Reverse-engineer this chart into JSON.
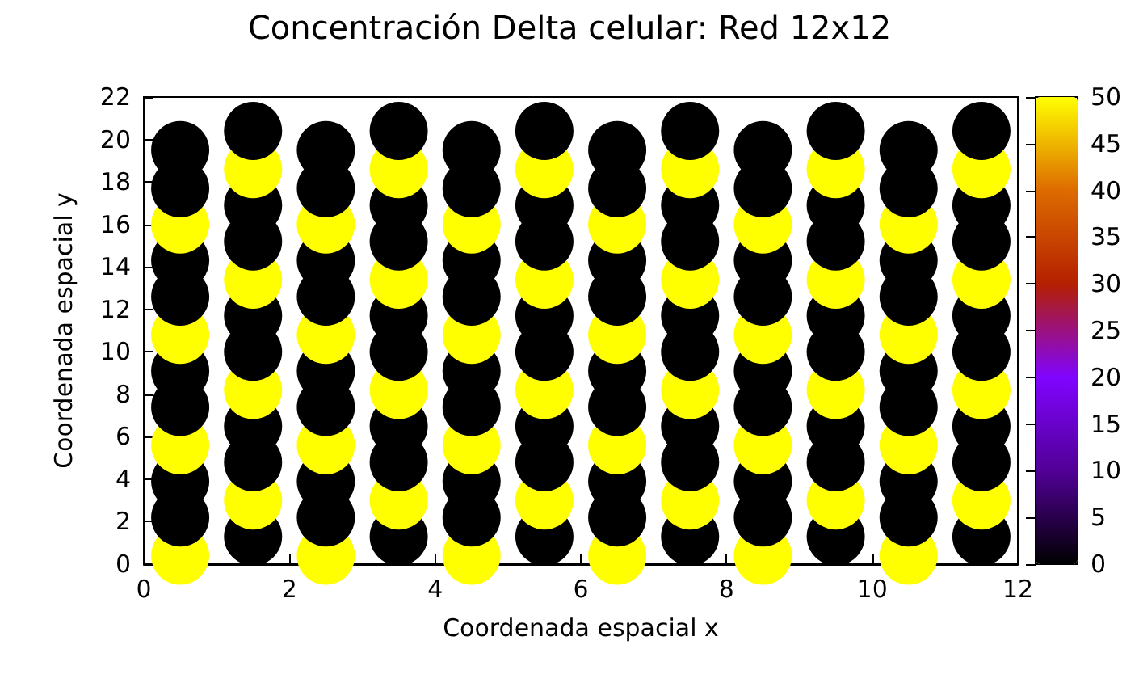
{
  "chart_data": {
    "type": "scatter",
    "title": "Concentración Delta celular: Red 12x12",
    "xlabel": "Coordenada espacial x",
    "ylabel": "Coordenada espacial y",
    "xlim": [
      0,
      12
    ],
    "xticks": [
      0,
      2,
      4,
      6,
      8,
      10,
      12
    ],
    "ylim": [
      0,
      22
    ],
    "yticks": [
      0,
      2,
      4,
      6,
      8,
      10,
      12,
      14,
      16,
      18,
      20,
      22
    ],
    "clim": [
      0,
      50
    ],
    "cticks": [
      0,
      5,
      10,
      15,
      20,
      25,
      30,
      35,
      40,
      45,
      50
    ],
    "grid": false,
    "marker": "circle",
    "x": [
      0.5,
      0.5,
      0.5,
      0.5,
      0.5,
      0.5,
      0.5,
      0.5,
      0.5,
      0.5,
      0.5,
      0.5,
      1.5,
      1.5,
      1.5,
      1.5,
      1.5,
      1.5,
      1.5,
      1.5,
      1.5,
      1.5,
      1.5,
      1.5,
      2.5,
      2.5,
      2.5,
      2.5,
      2.5,
      2.5,
      2.5,
      2.5,
      2.5,
      2.5,
      2.5,
      2.5,
      3.5,
      3.5,
      3.5,
      3.5,
      3.5,
      3.5,
      3.5,
      3.5,
      3.5,
      3.5,
      3.5,
      3.5,
      4.5,
      4.5,
      4.5,
      4.5,
      4.5,
      4.5,
      4.5,
      4.5,
      4.5,
      4.5,
      4.5,
      4.5,
      5.5,
      5.5,
      5.5,
      5.5,
      5.5,
      5.5,
      5.5,
      5.5,
      5.5,
      5.5,
      5.5,
      5.5,
      6.5,
      6.5,
      6.5,
      6.5,
      6.5,
      6.5,
      6.5,
      6.5,
      6.5,
      6.5,
      6.5,
      6.5,
      7.5,
      7.5,
      7.5,
      7.5,
      7.5,
      7.5,
      7.5,
      7.5,
      7.5,
      7.5,
      7.5,
      7.5,
      8.5,
      8.5,
      8.5,
      8.5,
      8.5,
      8.5,
      8.5,
      8.5,
      8.5,
      8.5,
      8.5,
      8.5,
      9.5,
      9.5,
      9.5,
      9.5,
      9.5,
      9.5,
      9.5,
      9.5,
      9.5,
      9.5,
      9.5,
      9.5,
      10.5,
      10.5,
      10.5,
      10.5,
      10.5,
      10.5,
      10.5,
      10.5,
      10.5,
      10.5,
      10.5,
      10.5,
      11.5,
      11.5,
      11.5,
      11.5,
      11.5,
      11.5,
      11.5,
      11.5,
      11.5,
      11.5,
      11.5,
      11.5
    ],
    "values": [
      0.4,
      2.2,
      3.9,
      5.6,
      7.4,
      9.1,
      10.8,
      12.6,
      14.3,
      16.0,
      17.7,
      19.5,
      1.3,
      3.0,
      4.8,
      6.5,
      8.2,
      10.0,
      11.7,
      13.4,
      15.2,
      16.9,
      18.6,
      20.4,
      0.4,
      2.2,
      3.9,
      5.6,
      7.4,
      9.1,
      10.8,
      12.6,
      14.3,
      16.0,
      17.7,
      19.5,
      1.3,
      3.0,
      4.8,
      6.5,
      8.2,
      10.0,
      11.7,
      13.4,
      15.2,
      16.9,
      18.6,
      20.4,
      0.4,
      2.2,
      3.9,
      5.6,
      7.4,
      9.1,
      10.8,
      12.6,
      14.3,
      16.0,
      17.7,
      19.5,
      1.3,
      3.0,
      4.8,
      6.5,
      8.2,
      10.0,
      11.7,
      13.4,
      15.2,
      16.9,
      18.6,
      20.4,
      0.4,
      2.2,
      3.9,
      5.6,
      7.4,
      9.1,
      10.8,
      12.6,
      14.3,
      16.0,
      17.7,
      19.5,
      1.3,
      3.0,
      4.8,
      6.5,
      8.2,
      10.0,
      11.7,
      13.4,
      15.2,
      16.9,
      18.6,
      20.4,
      0.4,
      2.2,
      3.9,
      5.6,
      7.4,
      9.1,
      10.8,
      12.6,
      14.3,
      16.0,
      17.7,
      19.5,
      1.3,
      3.0,
      4.8,
      6.5,
      8.2,
      10.0,
      11.7,
      13.4,
      15.2,
      16.9,
      18.6,
      20.4,
      0.4,
      2.2,
      3.9,
      5.6,
      7.4,
      9.1,
      10.8,
      12.6,
      14.3,
      16.0,
      17.7,
      19.5,
      1.3,
      3.0,
      4.8,
      6.5,
      8.2,
      10.0,
      11.7,
      13.4,
      15.2,
      16.9,
      18.6,
      20.4
    ],
    "cvalues": [
      50,
      0,
      0,
      50,
      0,
      0,
      50,
      0,
      0,
      50,
      0,
      0,
      0,
      50,
      0,
      0,
      50,
      0,
      0,
      50,
      0,
      0,
      50,
      0,
      50,
      0,
      0,
      50,
      0,
      0,
      50,
      0,
      0,
      50,
      0,
      0,
      0,
      50,
      0,
      0,
      50,
      0,
      0,
      50,
      0,
      0,
      50,
      0,
      50,
      0,
      0,
      50,
      0,
      0,
      50,
      0,
      0,
      50,
      0,
      0,
      0,
      50,
      0,
      0,
      50,
      0,
      0,
      50,
      0,
      0,
      50,
      0,
      50,
      0,
      0,
      50,
      0,
      0,
      50,
      0,
      0,
      50,
      0,
      0,
      0,
      50,
      0,
      0,
      50,
      0,
      0,
      50,
      0,
      0,
      50,
      0,
      50,
      0,
      0,
      50,
      0,
      0,
      50,
      0,
      0,
      50,
      0,
      0,
      0,
      50,
      0,
      0,
      50,
      0,
      0,
      50,
      0,
      0,
      50,
      0,
      50,
      0,
      0,
      50,
      0,
      0,
      50,
      0,
      0,
      50,
      0,
      0,
      0,
      50,
      0,
      0,
      50,
      0,
      0,
      50,
      0,
      0,
      50,
      0
    ]
  }
}
